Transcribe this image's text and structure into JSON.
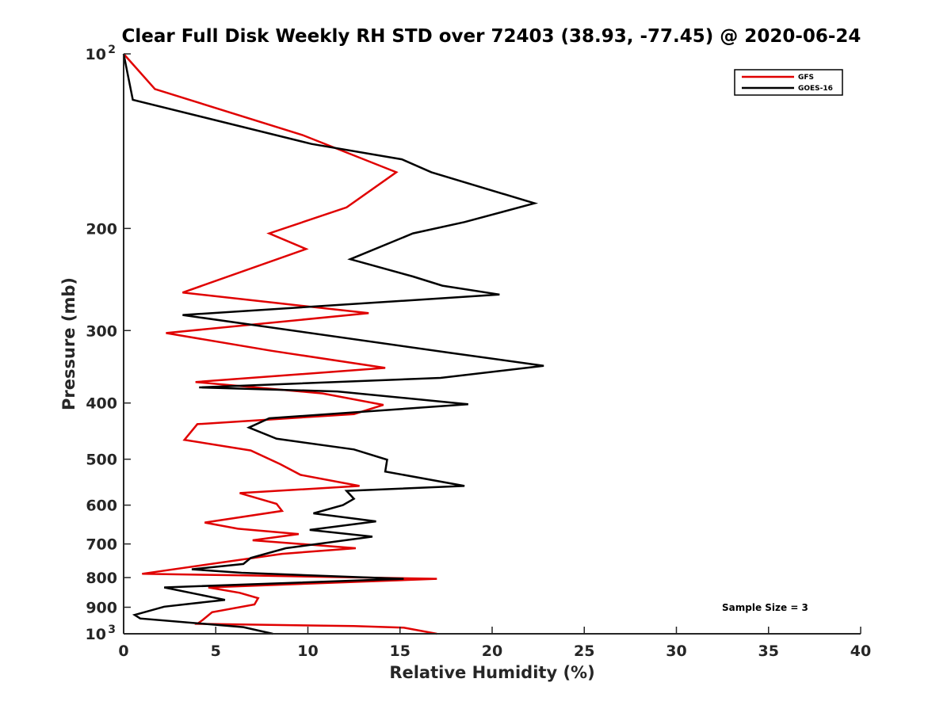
{
  "chart_data": {
    "type": "line",
    "title": "Clear Full Disk Weekly RH STD over 72403 (38.93, -77.45) @ 2020-06-24",
    "xlabel": "Relative Humidity (%)",
    "ylabel": "Pressure (mb)",
    "xlim": [
      0,
      40
    ],
    "ylim": [
      100,
      1000
    ],
    "y_scale": "log",
    "y_reversed": true,
    "x_ticks": [
      "0",
      "5",
      "10",
      "15",
      "20",
      "25",
      "30",
      "35",
      "40"
    ],
    "y_ticks": [
      {
        "value": 100,
        "base": "10",
        "exp": "2"
      },
      {
        "value": 200,
        "base": "200",
        "exp": ""
      },
      {
        "value": 300,
        "base": "300",
        "exp": ""
      },
      {
        "value": 400,
        "base": "400",
        "exp": ""
      },
      {
        "value": 500,
        "base": "500",
        "exp": ""
      },
      {
        "value": 600,
        "base": "600",
        "exp": ""
      },
      {
        "value": 700,
        "base": "700",
        "exp": ""
      },
      {
        "value": 800,
        "base": "800",
        "exp": ""
      },
      {
        "value": 900,
        "base": "900",
        "exp": ""
      },
      {
        "value": 1000,
        "base": "10",
        "exp": "3"
      }
    ],
    "grid": false,
    "legend_position": "top-right",
    "series": [
      {
        "name": "GFS",
        "color": "#e00000",
        "points": [
          [
            0.0,
            100
          ],
          [
            1.7,
            115
          ],
          [
            9.7,
            138
          ],
          [
            14.8,
            160
          ],
          [
            12.1,
            184
          ],
          [
            7.9,
            204
          ],
          [
            9.9,
            217
          ],
          [
            3.2,
            258
          ],
          [
            13.3,
            280
          ],
          [
            2.3,
            303
          ],
          [
            8.0,
            325
          ],
          [
            14.2,
            348
          ],
          [
            3.9,
            368
          ],
          [
            10.8,
            385
          ],
          [
            14.1,
            403
          ],
          [
            12.5,
            418
          ],
          [
            4.0,
            435
          ],
          [
            3.3,
            463
          ],
          [
            6.9,
            483
          ],
          [
            8.5,
            510
          ],
          [
            9.6,
            532
          ],
          [
            12.8,
            556
          ],
          [
            6.3,
            572
          ],
          [
            8.3,
            597
          ],
          [
            8.6,
            614
          ],
          [
            4.4,
            643
          ],
          [
            6.2,
            659
          ],
          [
            9.5,
            673
          ],
          [
            7.0,
            690
          ],
          [
            12.6,
            712
          ],
          [
            8.6,
            728
          ],
          [
            1.0,
            788
          ],
          [
            6.5,
            793
          ],
          [
            17.0,
            804
          ],
          [
            4.6,
            832
          ],
          [
            6.3,
            850
          ],
          [
            7.3,
            868
          ],
          [
            7.1,
            890
          ],
          [
            4.8,
            918
          ],
          [
            4.3,
            946
          ],
          [
            4.0,
            961
          ],
          [
            12.5,
            970
          ],
          [
            15.2,
            976
          ],
          [
            17.0,
            1000
          ]
        ]
      },
      {
        "name": "GOES-16",
        "color": "#000000",
        "points": [
          [
            0.0,
            100
          ],
          [
            0.5,
            120
          ],
          [
            10.2,
            143
          ],
          [
            15.1,
            152
          ],
          [
            16.7,
            160
          ],
          [
            22.3,
            181
          ],
          [
            18.5,
            195
          ],
          [
            15.7,
            204
          ],
          [
            12.3,
            226
          ],
          [
            15.7,
            242
          ],
          [
            17.3,
            251
          ],
          [
            20.4,
            260
          ],
          [
            3.2,
            282
          ],
          [
            17.8,
            328
          ],
          [
            22.8,
            345
          ],
          [
            17.2,
            362
          ],
          [
            4.1,
            376
          ],
          [
            11.6,
            382
          ],
          [
            18.7,
            402
          ],
          [
            7.9,
            425
          ],
          [
            6.8,
            441
          ],
          [
            8.3,
            461
          ],
          [
            12.5,
            481
          ],
          [
            14.3,
            501
          ],
          [
            14.2,
            525
          ],
          [
            18.5,
            556
          ],
          [
            12.1,
            567
          ],
          [
            12.5,
            585
          ],
          [
            11.9,
            600
          ],
          [
            10.3,
            620
          ],
          [
            13.7,
            640
          ],
          [
            10.1,
            662
          ],
          [
            13.5,
            680
          ],
          [
            8.8,
            712
          ],
          [
            6.9,
            740
          ],
          [
            6.5,
            758
          ],
          [
            3.7,
            774
          ],
          [
            6.4,
            785
          ],
          [
            15.2,
            804
          ],
          [
            2.2,
            832
          ],
          [
            5.5,
            874
          ],
          [
            2.2,
            898
          ],
          [
            0.6,
            928
          ],
          [
            0.9,
            941
          ],
          [
            6.5,
            974
          ],
          [
            8.1,
            1000
          ]
        ]
      }
    ],
    "legend": [
      {
        "label": "GFS",
        "color": "#e00000"
      },
      {
        "label": "GOES-16",
        "color": "#000000"
      }
    ],
    "annotation": "Sample Size = 3"
  }
}
